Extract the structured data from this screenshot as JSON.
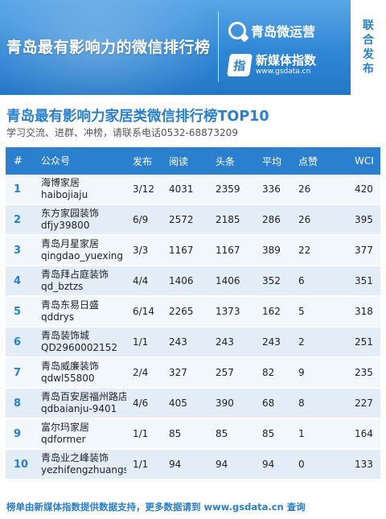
{
  "banner": {
    "title": "青岛最有影响力的微信排行榜",
    "brand1": "青岛微运营",
    "brand2": "新媒体指数",
    "brand2_url": "www.gsdata.cn",
    "brand2_icon_char": "指",
    "side_tag": [
      "联",
      "合",
      "发",
      "布"
    ]
  },
  "heading": {
    "title": "青岛最有影响力家居类微信排行榜TOP10",
    "subtitle": "学习交流、进群、冲榜，请联系电话0532-68873209"
  },
  "table": {
    "columns": [
      "#",
      "公众号",
      "发布",
      "阅读",
      "头条",
      "平均",
      "点赞",
      "WCI"
    ],
    "rows": [
      {
        "rank": "1",
        "name": "海博家居",
        "id": "haibojiaju",
        "pub": "3/12",
        "read": "4031",
        "head": "2359",
        "avg": "336",
        "like": "26",
        "wci": "420"
      },
      {
        "rank": "2",
        "name": "东方家园装饰",
        "id": "dfjy39800",
        "pub": "6/9",
        "read": "2572",
        "head": "2185",
        "avg": "286",
        "like": "26",
        "wci": "395"
      },
      {
        "rank": "3",
        "name": "青岛月星家居",
        "id": "qingdao_yuexing",
        "pub": "3/3",
        "read": "1167",
        "head": "1167",
        "avg": "389",
        "like": "22",
        "wci": "377"
      },
      {
        "rank": "4",
        "name": "青岛拜占庭装饰",
        "id": "qd_bztzs",
        "pub": "4/4",
        "read": "1406",
        "head": "1406",
        "avg": "352",
        "like": "6",
        "wci": "351"
      },
      {
        "rank": "5",
        "name": "青岛东易日盛",
        "id": "qddrys",
        "pub": "6/14",
        "read": "2265",
        "head": "1373",
        "avg": "162",
        "like": "5",
        "wci": "318"
      },
      {
        "rank": "6",
        "name": "青岛装饰城",
        "id": "QD2960002152",
        "pub": "1/1",
        "read": "243",
        "head": "243",
        "avg": "243",
        "like": "2",
        "wci": "251"
      },
      {
        "rank": "7",
        "name": "青岛威廉装饰",
        "id": "qdwl55800",
        "pub": "2/4",
        "read": "327",
        "head": "257",
        "avg": "82",
        "like": "9",
        "wci": "235"
      },
      {
        "rank": "8",
        "name": "青岛百安居福州路店",
        "id": "qdbaianju-9401",
        "pub": "4/6",
        "read": "405",
        "head": "390",
        "avg": "68",
        "like": "8",
        "wci": "227"
      },
      {
        "rank": "9",
        "name": "富尔玛家居",
        "id": "qdformer",
        "pub": "1/1",
        "read": "85",
        "head": "85",
        "avg": "85",
        "like": "1",
        "wci": "164"
      },
      {
        "rank": "10",
        "name": "青岛业之峰装饰",
        "id": "yezhifengzhuangshi",
        "pub": "1/1",
        "read": "94",
        "head": "94",
        "avg": "94",
        "like": "0",
        "wci": "133"
      }
    ]
  },
  "footer": "榜单由新媒体指数提供数据支持，更多数据请到 www.gsdata.cn 查询",
  "colors": {
    "accent": "#2a7fcf",
    "banner": "#2f86d6",
    "row_odd": "#f2f7fc",
    "row_even": "#e3edf8"
  }
}
